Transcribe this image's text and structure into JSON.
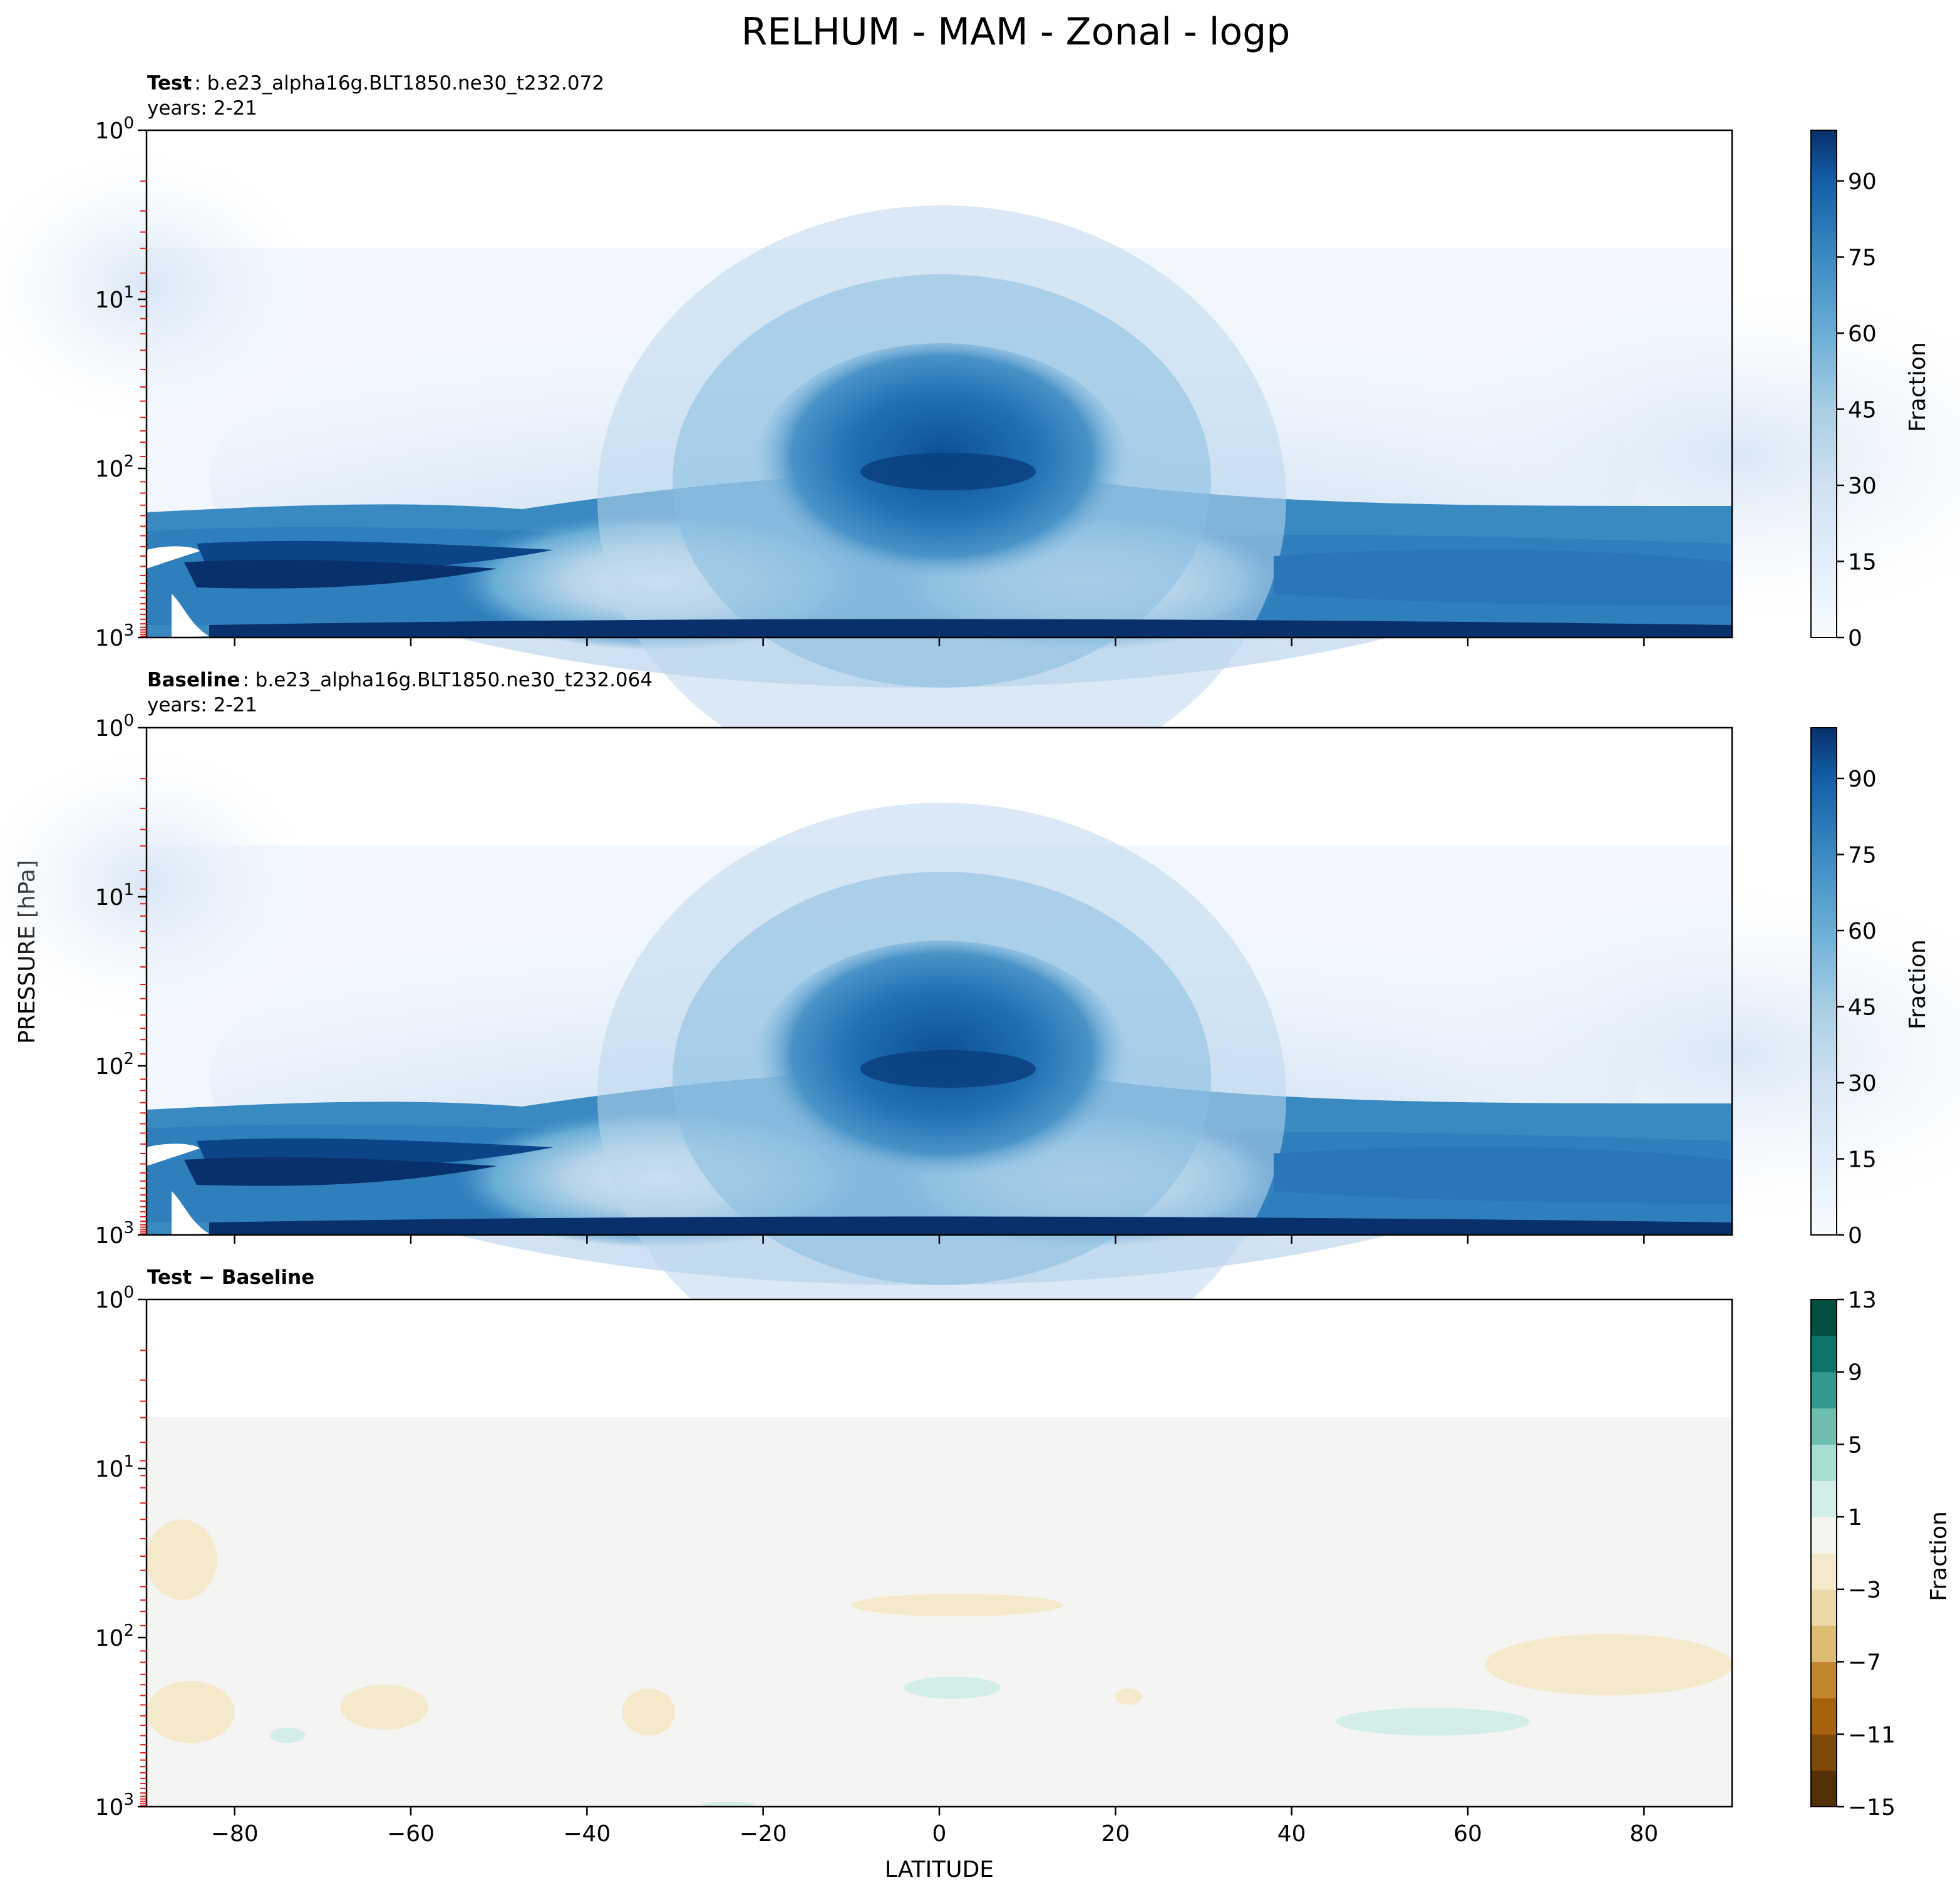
{
  "figure": {
    "title": "RELHUM - MAM - Zonal - logp",
    "ylabel": "PRESSURE [hPa]",
    "xlabel": "LATITUDE"
  },
  "chart_data": [
    {
      "type": "contour",
      "panel": "test",
      "title_bold": "Test",
      "title_rest": ": b.e23_alpha16g.BLT1850.ne30_t232.072",
      "subtitle": "years: 2-21",
      "xlim": [
        -90,
        90
      ],
      "ylim": [
        1000,
        1
      ],
      "yscale": "log",
      "x_ticks": [
        -80,
        -60,
        -40,
        -20,
        0,
        20,
        40,
        60,
        80
      ],
      "y_ticks": [
        {
          "value": 1,
          "base": "10",
          "exp": "0"
        },
        {
          "value": 10,
          "base": "10",
          "exp": "1"
        },
        {
          "value": 100,
          "base": "10",
          "exp": "2"
        },
        {
          "value": 1000,
          "base": "10",
          "exp": "3"
        }
      ],
      "model_levels_hpa": [
        2,
        3,
        4,
        5,
        7,
        9,
        11,
        13,
        16,
        20,
        26,
        33,
        40,
        50,
        60,
        70,
        85,
        100,
        120,
        140,
        165,
        190,
        220,
        250,
        290,
        330,
        380,
        430,
        480,
        530,
        580,
        630,
        680,
        730,
        780,
        830,
        870,
        900,
        930,
        960,
        985
      ],
      "colorbar": {
        "label": "Fraction",
        "ticks": [
          0,
          15,
          30,
          45,
          60,
          75,
          90
        ],
        "min": 0,
        "max": 100,
        "colormap": "Blues"
      }
    },
    {
      "type": "contour",
      "panel": "baseline",
      "title_bold": "Baseline",
      "title_rest": ": b.e23_alpha16g.BLT1850.ne30_t232.064",
      "subtitle": "years: 2-21",
      "xlim": [
        -90,
        90
      ],
      "ylim": [
        1000,
        1
      ],
      "yscale": "log",
      "colorbar": {
        "label": "Fraction",
        "ticks": [
          0,
          15,
          30,
          45,
          60,
          75,
          90
        ],
        "min": 0,
        "max": 100,
        "colormap": "Blues"
      }
    },
    {
      "type": "contour",
      "panel": "difference",
      "title_bold": "Test − Baseline",
      "title_rest": "",
      "subtitle": "",
      "xlim": [
        -90,
        90
      ],
      "ylim": [
        1000,
        1
      ],
      "yscale": "log",
      "colorbar": {
        "label": "Fraction",
        "ticks": [
          "−15",
          "−11",
          "−7",
          "−3",
          "1",
          "5",
          "9",
          "13"
        ],
        "min": -15,
        "max": 13,
        "colormap": "BrBG",
        "levels": [
          "#543005",
          "#7f4909",
          "#a6610f",
          "#c3862f",
          "#dcbb73",
          "#ecd7a8",
          "#f5e9cc",
          "#f4f4f0",
          "#d3eee8",
          "#a7ddd0",
          "#6fbdae",
          "#33998d",
          "#0e7467",
          "#01503f"
        ]
      },
      "regions": [
        {
          "sign": "negative",
          "approx_value": -2,
          "lat": [
            -90,
            -82
          ],
          "plev": [
            20,
            60
          ]
        },
        {
          "sign": "negative",
          "approx_value": -2,
          "lat": [
            -10,
            14
          ],
          "plev": [
            55,
            75
          ]
        },
        {
          "sign": "negative",
          "approx_value": -2,
          "lat": [
            -90,
            -80
          ],
          "plev": [
            180,
            420
          ]
        },
        {
          "sign": "negative",
          "approx_value": -2,
          "lat": [
            -68,
            -58
          ],
          "plev": [
            190,
            350
          ]
        },
        {
          "sign": "negative",
          "approx_value": -2,
          "lat": [
            -36,
            -30
          ],
          "plev": [
            200,
            380
          ]
        },
        {
          "sign": "negative",
          "approx_value": -2,
          "lat": [
            20,
            23
          ],
          "plev": [
            200,
            250
          ]
        },
        {
          "sign": "negative",
          "approx_value": -2,
          "lat": [
            62,
            90
          ],
          "plev": [
            95,
            220
          ]
        },
        {
          "sign": "positive",
          "approx_value": 2,
          "lat": [
            -4,
            7
          ],
          "plev": [
            170,
            230
          ]
        },
        {
          "sign": "positive",
          "approx_value": 2,
          "lat": [
            -76,
            -72
          ],
          "plev": [
            340,
            420
          ]
        },
        {
          "sign": "positive",
          "approx_value": 2,
          "lat": [
            45,
            67
          ],
          "plev": [
            260,
            380
          ]
        },
        {
          "sign": "positive",
          "approx_value": 2,
          "lat": [
            -27,
            -21
          ],
          "plev": [
            950,
            990
          ]
        }
      ]
    }
  ]
}
